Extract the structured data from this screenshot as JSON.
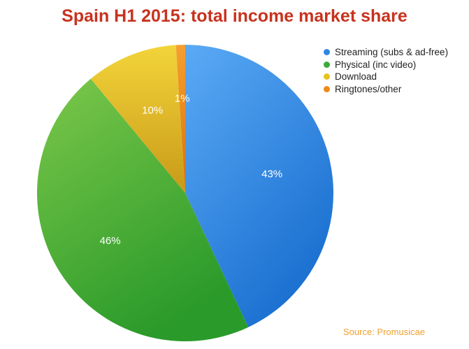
{
  "chart_data": {
    "type": "pie",
    "title": "Spain H1 2015: total income market share",
    "slices": [
      {
        "label": "Streaming (subs & ad-free)",
        "value": 43,
        "value_label": "43%",
        "color": "#2f86e6"
      },
      {
        "label": "Physical (inc video)",
        "value": 46,
        "value_label": "46%",
        "color": "#3da83a"
      },
      {
        "label": "Download",
        "value": 10,
        "value_label": "10%",
        "color": "#e8c21c"
      },
      {
        "label": "Ringtones/other",
        "value": 1,
        "value_label": "1%",
        "color": "#ee8a18"
      }
    ],
    "legend_position": "top-right",
    "source": "Source: Promusicae"
  }
}
